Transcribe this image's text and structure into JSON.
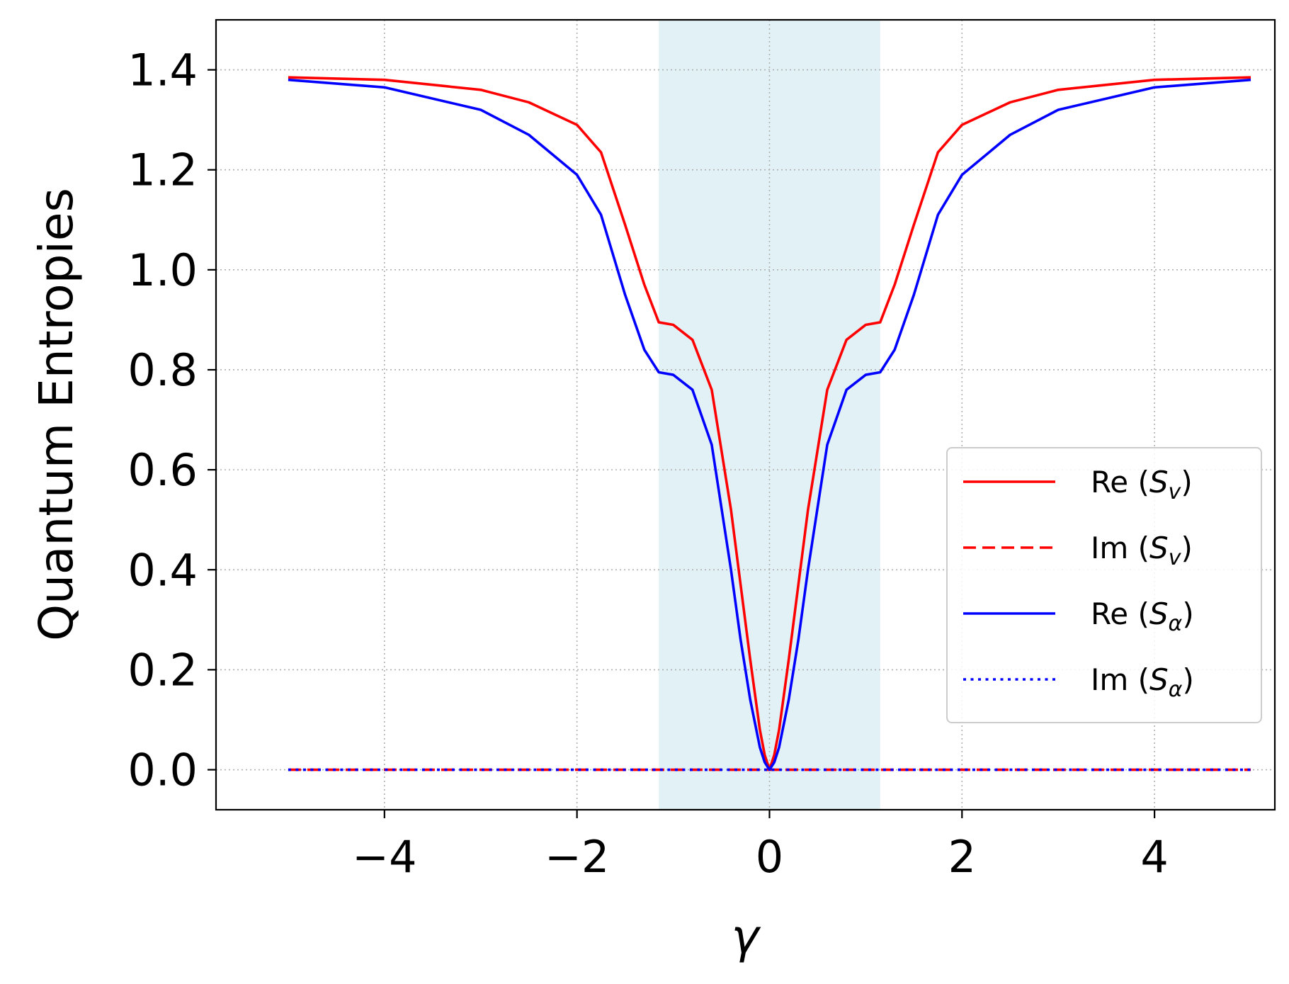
{
  "chart_data": {
    "type": "line",
    "xlabel": "γ",
    "ylabel": "Quantum Entropies",
    "xlim": [
      -5.75,
      5.25
    ],
    "ylim": [
      -0.08,
      1.5
    ],
    "xticks": [
      -4,
      -2,
      0,
      2,
      4
    ],
    "xtick_labels": [
      "−4",
      "−2",
      "0",
      "2",
      "4"
    ],
    "yticks": [
      0.0,
      0.2,
      0.4,
      0.6,
      0.8,
      1.0,
      1.2,
      1.4
    ],
    "ytick_labels": [
      "0.0",
      "0.2",
      "0.4",
      "0.6",
      "0.8",
      "1.0",
      "1.2",
      "1.4"
    ],
    "grid": true,
    "legend_position": "lower right",
    "shaded_region": {
      "x_start": -1.15,
      "x_end": 1.15,
      "color": "#add8e6"
    },
    "series": [
      {
        "name": "Re (S_v)",
        "legend_main": "Re (",
        "legend_sym": "S",
        "legend_sub": "v",
        "legend_close": ")",
        "color": "#ff0000",
        "style": "solid",
        "x": [
          -5.0,
          -4.0,
          -3.0,
          -2.5,
          -2.0,
          -1.75,
          -1.5,
          -1.3,
          -1.15,
          -1.0,
          -0.8,
          -0.6,
          -0.4,
          -0.3,
          -0.2,
          -0.1,
          -0.05,
          0.0,
          0.05,
          0.1,
          0.2,
          0.3,
          0.4,
          0.6,
          0.8,
          1.0,
          1.15,
          1.3,
          1.5,
          1.75,
          2.0,
          2.5,
          3.0,
          4.0,
          5.0
        ],
        "y": [
          1.385,
          1.38,
          1.36,
          1.335,
          1.29,
          1.235,
          1.09,
          0.97,
          0.895,
          0.89,
          0.86,
          0.76,
          0.52,
          0.37,
          0.22,
          0.08,
          0.03,
          0.0,
          0.03,
          0.08,
          0.22,
          0.37,
          0.52,
          0.76,
          0.86,
          0.89,
          0.895,
          0.97,
          1.09,
          1.235,
          1.29,
          1.335,
          1.36,
          1.38,
          1.385
        ]
      },
      {
        "name": "Im (S_v)",
        "legend_main": "Im (",
        "legend_sym": "S",
        "legend_sub": "v",
        "legend_close": ")",
        "color": "#ff0000",
        "style": "dashed",
        "x": [
          -5.0,
          5.0
        ],
        "y": [
          0.0,
          0.0
        ]
      },
      {
        "name": "Re (S_α)",
        "legend_main": "Re (",
        "legend_sym": "S",
        "legend_sub": "α",
        "legend_close": ")",
        "color": "#0000ff",
        "style": "solid",
        "x": [
          -5.0,
          -4.0,
          -3.0,
          -2.5,
          -2.0,
          -1.75,
          -1.5,
          -1.3,
          -1.15,
          -1.0,
          -0.8,
          -0.6,
          -0.4,
          -0.3,
          -0.2,
          -0.1,
          -0.05,
          0.0,
          0.05,
          0.1,
          0.2,
          0.3,
          0.4,
          0.6,
          0.8,
          1.0,
          1.15,
          1.3,
          1.5,
          1.75,
          2.0,
          2.5,
          3.0,
          4.0,
          5.0
        ],
        "y": [
          1.38,
          1.365,
          1.32,
          1.27,
          1.19,
          1.11,
          0.95,
          0.84,
          0.795,
          0.79,
          0.76,
          0.65,
          0.4,
          0.26,
          0.14,
          0.045,
          0.015,
          0.0,
          0.015,
          0.045,
          0.14,
          0.26,
          0.4,
          0.65,
          0.76,
          0.79,
          0.795,
          0.84,
          0.95,
          1.11,
          1.19,
          1.27,
          1.32,
          1.365,
          1.38
        ]
      },
      {
        "name": "Im (S_α)",
        "legend_main": "Im (",
        "legend_sym": "S",
        "legend_sub": "α",
        "legend_close": ")",
        "color": "#0000ff",
        "style": "dotted",
        "x": [
          -5.0,
          5.0
        ],
        "y": [
          0.0,
          0.0
        ]
      }
    ]
  }
}
